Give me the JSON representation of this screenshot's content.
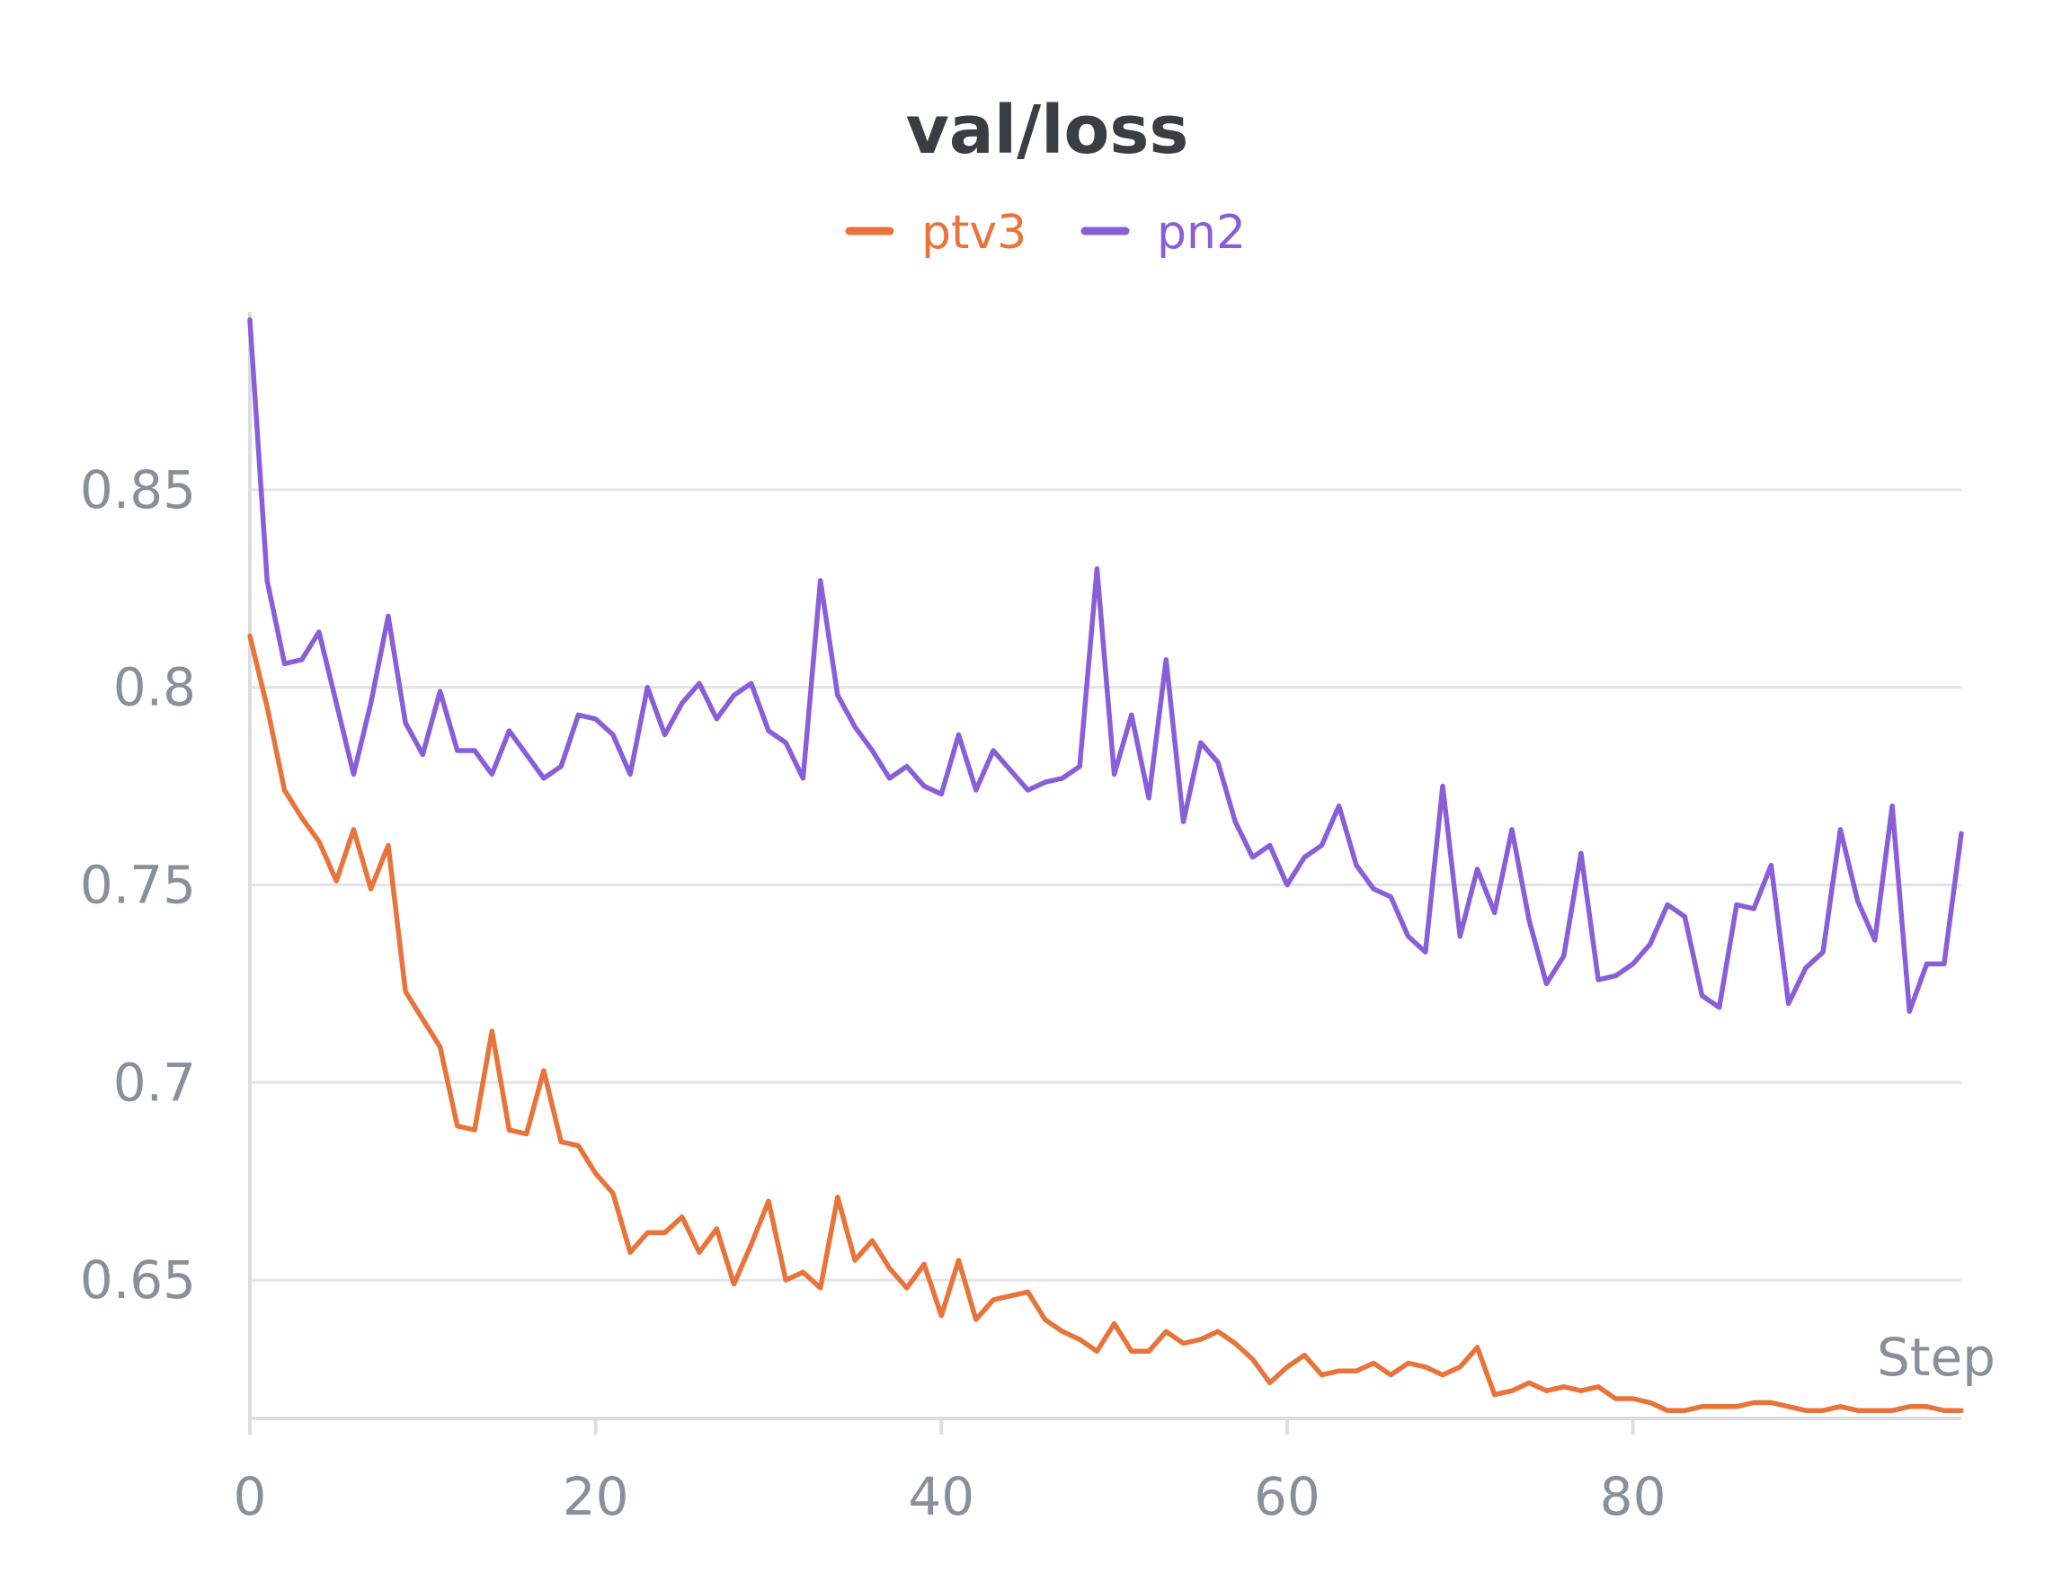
{
  "chart_data": {
    "type": "line",
    "title": "val/loss",
    "xlabel": "Step",
    "ylabel": "",
    "xlim": [
      0,
      99
    ],
    "ylim": [
      0.615,
      0.895
    ],
    "xticks": [
      0,
      20,
      40,
      60,
      80
    ],
    "yticks": [
      0.65,
      0.7,
      0.75,
      0.8,
      0.85
    ],
    "xtick_labels": [
      "0",
      "20",
      "40",
      "60",
      "80"
    ],
    "ytick_labels": [
      "0.65",
      "0.7",
      "0.75",
      "0.8",
      "0.85"
    ],
    "grid": true,
    "legend_position": "top-center",
    "series": [
      {
        "name": "ptv3",
        "color": "#e8743b",
        "x": [
          0,
          1,
          2,
          3,
          4,
          5,
          6,
          7,
          8,
          9,
          10,
          11,
          12,
          13,
          14,
          15,
          16,
          17,
          18,
          19,
          20,
          21,
          22,
          23,
          24,
          25,
          26,
          27,
          28,
          29,
          30,
          31,
          32,
          33,
          34,
          35,
          36,
          37,
          38,
          39,
          40,
          41,
          42,
          43,
          44,
          45,
          46,
          47,
          48,
          49,
          50,
          51,
          52,
          53,
          54,
          55,
          56,
          57,
          58,
          59,
          60,
          61,
          62,
          63,
          64,
          65,
          66,
          67,
          68,
          69,
          70,
          71,
          72,
          73,
          74,
          75,
          76,
          77,
          78,
          79,
          80,
          81,
          82,
          83,
          84,
          85,
          86,
          87,
          88,
          89,
          90,
          91,
          92,
          93,
          94,
          95,
          96,
          97,
          98,
          99
        ],
        "values": [
          0.813,
          0.795,
          0.774,
          0.767,
          0.761,
          0.751,
          0.764,
          0.749,
          0.76,
          0.723,
          0.716,
          0.709,
          0.689,
          0.688,
          0.713,
          0.688,
          0.687,
          0.703,
          0.685,
          0.684,
          0.677,
          0.672,
          0.657,
          0.662,
          0.662,
          0.666,
          0.657,
          0.663,
          0.649,
          0.659,
          0.67,
          0.65,
          0.652,
          0.648,
          0.671,
          0.655,
          0.66,
          0.653,
          0.648,
          0.654,
          0.641,
          0.655,
          0.64,
          0.645,
          0.646,
          0.647,
          0.64,
          0.637,
          0.635,
          0.632,
          0.639,
          0.632,
          0.632,
          0.637,
          0.634,
          0.635,
          0.637,
          0.634,
          0.63,
          0.624,
          0.628,
          0.631,
          0.626,
          0.627,
          0.627,
          0.629,
          0.626,
          0.629,
          0.628,
          0.626,
          0.628,
          0.633,
          0.621,
          0.622,
          0.624,
          0.622,
          0.623,
          0.622,
          0.623,
          0.62,
          0.62,
          0.619,
          0.617,
          0.617,
          0.618,
          0.618,
          0.618,
          0.619,
          0.619,
          0.618,
          0.617,
          0.617,
          0.618,
          0.617,
          0.617,
          0.617,
          0.618,
          0.618,
          0.617,
          0.617
        ]
      },
      {
        "name": "pn2",
        "color": "#8a5ed8",
        "x": [
          0,
          1,
          2,
          3,
          4,
          5,
          6,
          7,
          8,
          9,
          10,
          11,
          12,
          13,
          14,
          15,
          16,
          17,
          18,
          19,
          20,
          21,
          22,
          23,
          24,
          25,
          26,
          27,
          28,
          29,
          30,
          31,
          32,
          33,
          34,
          35,
          36,
          37,
          38,
          39,
          40,
          41,
          42,
          43,
          44,
          45,
          46,
          47,
          48,
          49,
          50,
          51,
          52,
          53,
          54,
          55,
          56,
          57,
          58,
          59,
          60,
          61,
          62,
          63,
          64,
          65,
          66,
          67,
          68,
          69,
          70,
          71,
          72,
          73,
          74,
          75,
          76,
          77,
          78,
          79,
          80,
          81,
          82,
          83,
          84,
          85,
          86,
          87,
          88,
          89,
          90,
          91,
          92,
          93,
          94,
          95,
          96,
          97,
          98,
          99
        ],
        "values": [
          0.893,
          0.827,
          0.806,
          0.807,
          0.814,
          0.796,
          0.778,
          0.796,
          0.818,
          0.791,
          0.783,
          0.799,
          0.784,
          0.784,
          0.778,
          0.789,
          0.783,
          0.777,
          0.78,
          0.793,
          0.792,
          0.788,
          0.778,
          0.8,
          0.788,
          0.796,
          0.801,
          0.792,
          0.798,
          0.801,
          0.789,
          0.786,
          0.777,
          0.827,
          0.798,
          0.79,
          0.784,
          0.777,
          0.78,
          0.775,
          0.773,
          0.788,
          0.774,
          0.784,
          0.779,
          0.774,
          0.776,
          0.777,
          0.78,
          0.83,
          0.778,
          0.793,
          0.772,
          0.807,
          0.766,
          0.786,
          0.781,
          0.766,
          0.757,
          0.76,
          0.75,
          0.757,
          0.76,
          0.77,
          0.755,
          0.749,
          0.747,
          0.737,
          0.733,
          0.775,
          0.737,
          0.754,
          0.743,
          0.764,
          0.741,
          0.725,
          0.732,
          0.758,
          0.726,
          0.727,
          0.73,
          0.735,
          0.745,
          0.742,
          0.722,
          0.719,
          0.745,
          0.744,
          0.755,
          0.72,
          0.729,
          0.733,
          0.764,
          0.746,
          0.736,
          0.77,
          0.718,
          0.73,
          0.73,
          0.763
        ]
      }
    ]
  }
}
